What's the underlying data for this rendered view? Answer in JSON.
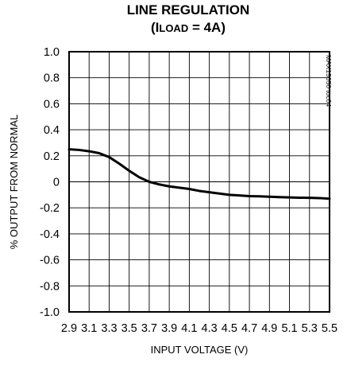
{
  "chart_data": {
    "type": "line",
    "title": "LINE REGULATION",
    "subtitle_prefix": "(I",
    "subtitle_subscript": "LOAD",
    "subtitle_suffix": " = 4A)",
    "xlabel": "INPUT VOLTAGE (V)",
    "ylabel": "% OUTPUT FROM NORMAL",
    "watermark": "MAX15050 toc04",
    "xlim": [
      2.9,
      5.5
    ],
    "ylim": [
      -1.0,
      1.0
    ],
    "x_ticks": [
      "2.9",
      "3.1",
      "3.3",
      "3.5",
      "3.7",
      "3.9",
      "4.1",
      "4.3",
      "4.5",
      "4.7",
      "4.9",
      "5.1",
      "5.3",
      "5.5"
    ],
    "y_ticks": [
      "1.0",
      "0.8",
      "0.6",
      "0.4",
      "0.2",
      "0",
      "-0.2",
      "-0.4",
      "-0.6",
      "-0.8",
      "-1.0"
    ],
    "grid": true,
    "x": [
      2.9,
      3.0,
      3.1,
      3.2,
      3.3,
      3.4,
      3.5,
      3.6,
      3.7,
      3.8,
      3.9,
      4.0,
      4.1,
      4.2,
      4.3,
      4.4,
      4.5,
      4.6,
      4.7,
      4.8,
      4.9,
      5.0,
      5.1,
      5.2,
      5.3,
      5.4,
      5.5
    ],
    "values": [
      0.25,
      0.245,
      0.235,
      0.22,
      0.19,
      0.14,
      0.085,
      0.035,
      0.0,
      -0.02,
      -0.035,
      -0.045,
      -0.055,
      -0.07,
      -0.08,
      -0.09,
      -0.1,
      -0.105,
      -0.11,
      -0.112,
      -0.115,
      -0.118,
      -0.12,
      -0.122,
      -0.123,
      -0.125,
      -0.13
    ]
  }
}
